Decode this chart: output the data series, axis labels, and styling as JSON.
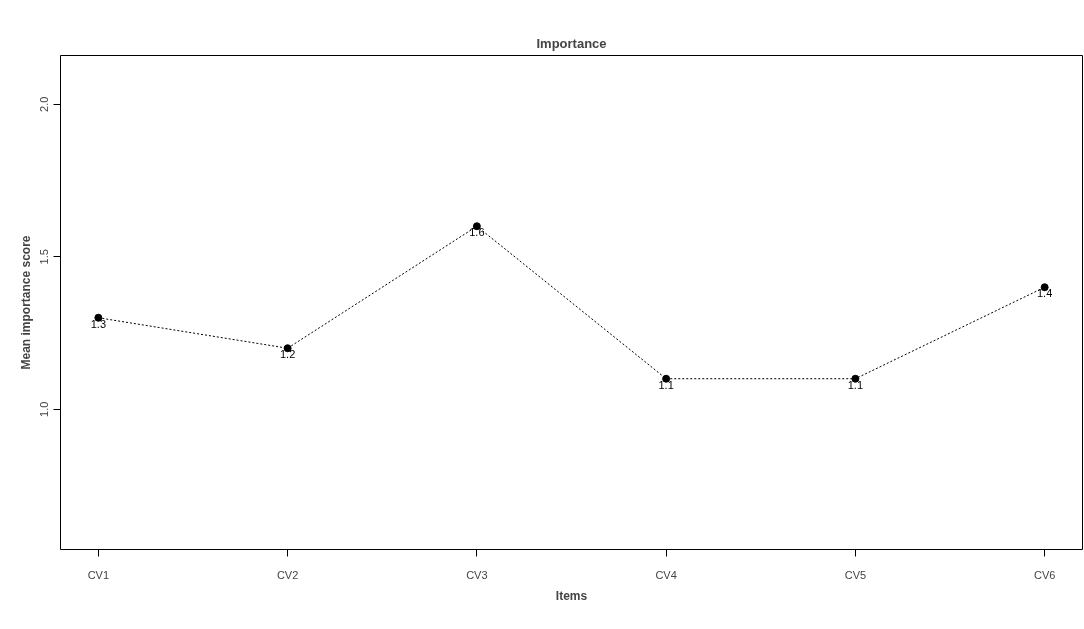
{
  "chart_data": {
    "type": "line",
    "title": "Importance",
    "xlabel": "Items",
    "ylabel": "Mean importance score",
    "categories": [
      "CV1",
      "CV2",
      "CV3",
      "CV4",
      "CV5",
      "CV6"
    ],
    "series": [
      {
        "color": "#000000",
        "values": [
          1.3,
          1.2,
          1.6,
          1.1,
          1.1,
          1.4
        ]
      }
    ],
    "ylim": [
      0.54,
      2.16
    ],
    "yticks": [
      {
        "value": 1,
        "label": "1.0"
      },
      1.5,
      {
        "value": 2,
        "label": "2.0"
      }
    ],
    "grid": false,
    "marker": "circle",
    "line_style": "dotted",
    "data_labels": true
  }
}
